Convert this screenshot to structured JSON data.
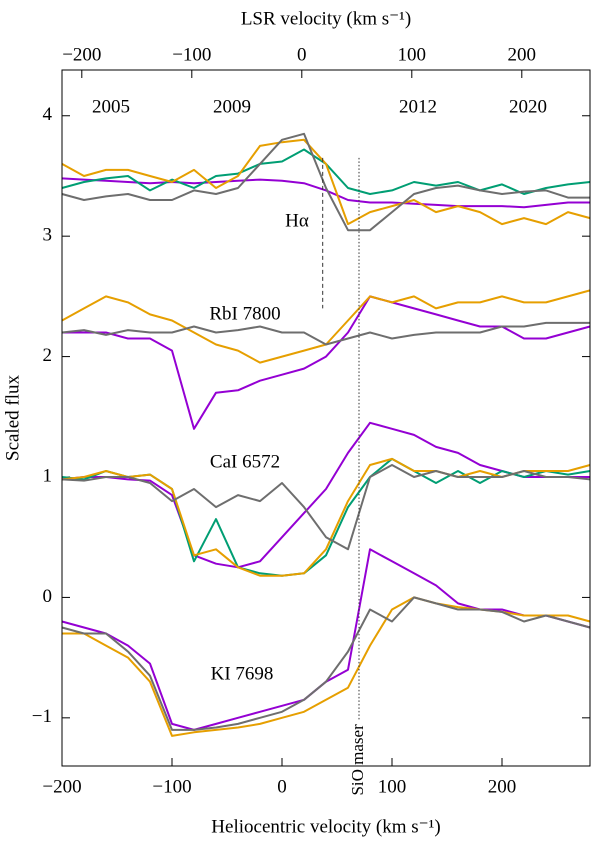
{
  "chart_data": {
    "type": "line",
    "xlabel": "Heliocentric velocity (km s⁻¹)",
    "ylabel": "Scaled flux",
    "x2label": "LSR velocity (km s⁻¹)",
    "xlim": [
      -200,
      280
    ],
    "x2lim": [
      -218,
      262
    ],
    "ylim": [
      -1.4,
      4.38
    ],
    "xticks": [
      {
        "value": -200,
        "label": "−200"
      },
      {
        "value": -100,
        "label": "−100"
      },
      0,
      100,
      200
    ],
    "x2ticks": [
      {
        "value": -200,
        "label": "−200"
      },
      {
        "value": -100,
        "label": "−100"
      },
      0,
      100,
      200
    ],
    "yticks": [
      {
        "value": -1,
        "label": "−1"
      },
      0,
      1,
      2,
      3,
      4
    ],
    "line_labels": [
      "Hα",
      "RbI 7800",
      "CaI 6572",
      "KI 7698"
    ],
    "markers": [
      {
        "x": 37,
        "style": "dashed"
      },
      {
        "x": 70,
        "style": "dotted",
        "label": "SiO maser"
      }
    ],
    "x": [
      -200,
      -180,
      -160,
      -140,
      -120,
      -100,
      -80,
      -60,
      -40,
      -20,
      0,
      20,
      40,
      60,
      80,
      100,
      120,
      140,
      160,
      180,
      200,
      220,
      240,
      260,
      280
    ],
    "series": [
      {
        "name": "2005",
        "color": "#9400d3",
        "profiles": [
          [
            3.48,
            3.47,
            3.46,
            3.45,
            3.44,
            3.45,
            3.44,
            3.45,
            3.46,
            3.47,
            3.46,
            3.44,
            3.38,
            3.3,
            3.28,
            3.28,
            3.27,
            3.26,
            3.25,
            3.25,
            3.25,
            3.24,
            3.26,
            3.28,
            3.28
          ],
          [
            2.2,
            2.2,
            2.2,
            2.15,
            2.15,
            2.05,
            1.4,
            1.7,
            1.72,
            1.8,
            1.85,
            1.9,
            2.0,
            2.2,
            2.5,
            2.45,
            2.4,
            2.35,
            2.3,
            2.25,
            2.25,
            2.15,
            2.15,
            2.2,
            2.25
          ],
          [
            0.98,
            1.0,
            1.0,
            0.98,
            0.97,
            0.85,
            0.35,
            0.28,
            0.25,
            0.3,
            0.5,
            0.7,
            0.9,
            1.2,
            1.45,
            1.4,
            1.35,
            1.25,
            1.2,
            1.1,
            1.05,
            1.0,
            1.0,
            1.0,
            1.0
          ],
          [
            -0.2,
            -0.25,
            -0.3,
            -0.4,
            -0.55,
            -1.05,
            -1.1,
            -1.05,
            -1.0,
            -0.95,
            -0.9,
            -0.85,
            -0.7,
            -0.6,
            0.4,
            0.3,
            0.2,
            0.1,
            -0.05,
            -0.1,
            -0.1,
            -0.15,
            -0.15,
            -0.2,
            -0.25
          ]
        ]
      },
      {
        "name": "2009",
        "color": "#009e73",
        "profiles": [
          [
            3.4,
            3.45,
            3.48,
            3.5,
            3.38,
            3.47,
            3.4,
            3.5,
            3.52,
            3.6,
            3.62,
            3.72,
            3.6,
            3.4,
            3.35,
            3.38,
            3.45,
            3.42,
            3.45,
            3.38,
            3.43,
            3.35,
            3.4,
            3.43,
            3.45
          ],
          null,
          [
            1.0,
            0.98,
            1.05,
            1.0,
            1.02,
            0.9,
            0.3,
            0.65,
            0.25,
            0.2,
            0.18,
            0.2,
            0.35,
            0.75,
            1.0,
            1.15,
            1.05,
            0.95,
            1.05,
            0.95,
            1.05,
            1.0,
            1.05,
            1.02,
            1.05
          ],
          null
        ]
      },
      {
        "name": "2012",
        "color": "#e69f00",
        "profiles": [
          [
            3.6,
            3.5,
            3.55,
            3.55,
            3.5,
            3.45,
            3.55,
            3.4,
            3.5,
            3.75,
            3.78,
            3.8,
            3.6,
            3.1,
            3.2,
            3.25,
            3.3,
            3.2,
            3.25,
            3.2,
            3.1,
            3.15,
            3.1,
            3.2,
            3.15
          ],
          [
            2.3,
            2.4,
            2.5,
            2.45,
            2.35,
            2.3,
            2.2,
            2.1,
            2.05,
            1.95,
            2.0,
            2.05,
            2.1,
            2.3,
            2.5,
            2.45,
            2.5,
            2.4,
            2.45,
            2.45,
            2.5,
            2.45,
            2.45,
            2.5,
            2.55
          ],
          [
            0.98,
            1.0,
            1.05,
            1.0,
            1.02,
            0.9,
            0.35,
            0.4,
            0.25,
            0.18,
            0.18,
            0.2,
            0.4,
            0.8,
            1.1,
            1.15,
            1.05,
            1.05,
            1.0,
            1.05,
            1.0,
            1.05,
            1.05,
            1.05,
            1.1
          ],
          [
            -0.3,
            -0.3,
            -0.4,
            -0.5,
            -0.7,
            -1.15,
            -1.12,
            -1.1,
            -1.08,
            -1.05,
            -1.0,
            -0.95,
            -0.85,
            -0.75,
            -0.4,
            -0.1,
            0.0,
            -0.05,
            -0.08,
            -0.1,
            -0.12,
            -0.15,
            -0.15,
            -0.15,
            -0.2
          ]
        ]
      },
      {
        "name": "2020",
        "color": "#6e6e6e",
        "profiles": [
          [
            3.35,
            3.3,
            3.33,
            3.35,
            3.3,
            3.3,
            3.38,
            3.35,
            3.4,
            3.6,
            3.8,
            3.85,
            3.4,
            3.05,
            3.05,
            3.2,
            3.35,
            3.4,
            3.42,
            3.38,
            3.35,
            3.37,
            3.38,
            3.32,
            3.32
          ],
          [
            2.2,
            2.22,
            2.18,
            2.22,
            2.2,
            2.2,
            2.25,
            2.2,
            2.22,
            2.25,
            2.2,
            2.2,
            2.1,
            2.15,
            2.2,
            2.15,
            2.18,
            2.2,
            2.2,
            2.2,
            2.25,
            2.25,
            2.28,
            2.28,
            2.28
          ],
          [
            0.98,
            0.97,
            1.0,
            1.0,
            0.95,
            0.8,
            0.9,
            0.75,
            0.85,
            0.8,
            0.95,
            0.75,
            0.5,
            0.4,
            1.0,
            1.1,
            1.0,
            1.05,
            1.0,
            1.0,
            1.0,
            1.05,
            1.0,
            1.0,
            0.98
          ],
          [
            -0.25,
            -0.3,
            -0.3,
            -0.45,
            -0.65,
            -1.1,
            -1.1,
            -1.08,
            -1.05,
            -1.0,
            -0.95,
            -0.85,
            -0.7,
            -0.45,
            -0.1,
            -0.2,
            0.0,
            -0.05,
            -0.1,
            -0.1,
            -0.12,
            -0.2,
            -0.15,
            -0.2,
            -0.25
          ]
        ]
      }
    ]
  }
}
